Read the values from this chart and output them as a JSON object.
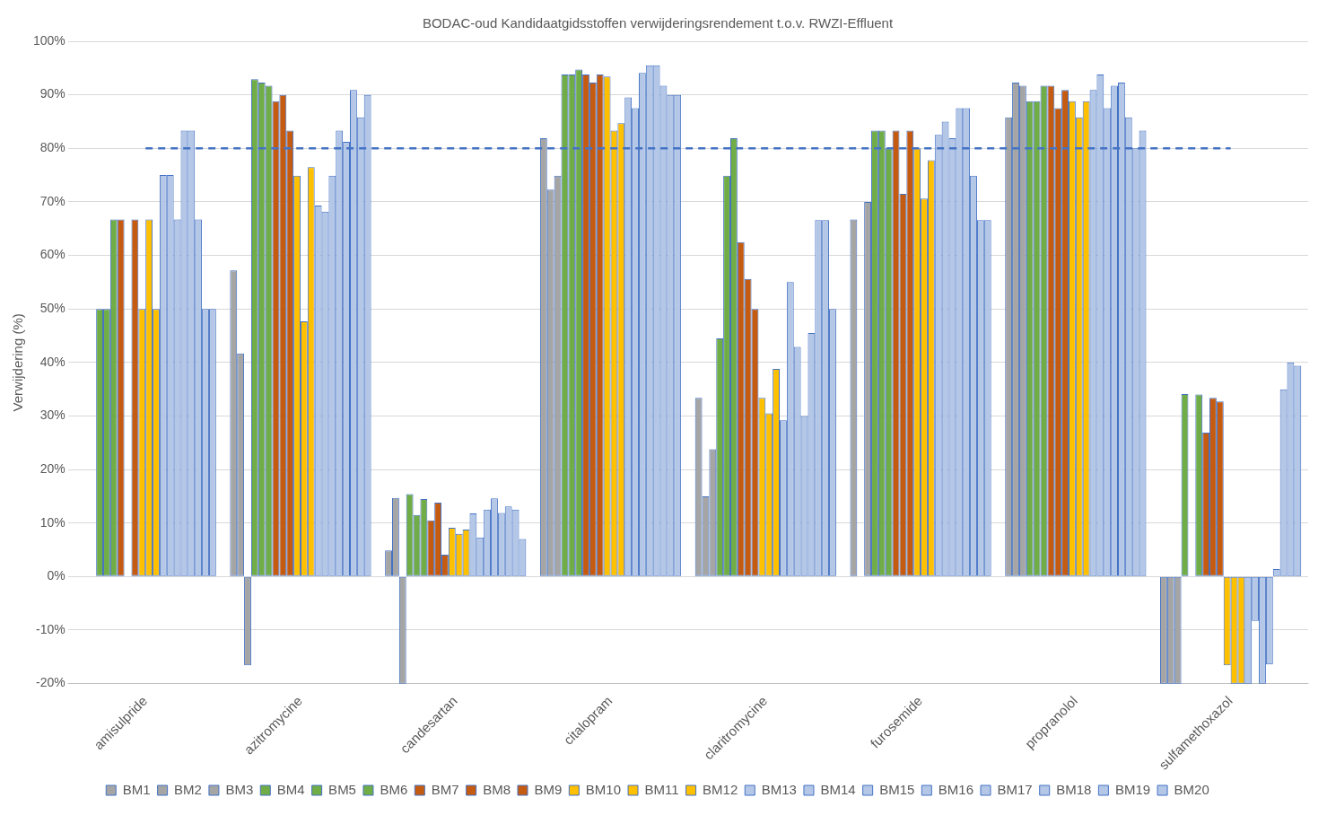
{
  "chart_data": {
    "type": "bar",
    "title": "BODAC-oud Kandidaatgidsstoffen verwijderingsrendement t.o.v. RWZI-Effluent",
    "ylabel": "Verwijdering (%)",
    "categories": [
      "amisulpride",
      "azitromycine",
      "candesartan",
      "citalopram",
      "claritromycine",
      "furosemide",
      "propranolol",
      "sulfamethoxazol"
    ],
    "series": [
      {
        "name": "BM1",
        "color": "#a5a5a5",
        "values": [
          null,
          57.2,
          4.9,
          81.9,
          33.4,
          66.7,
          85.8,
          -20
        ]
      },
      {
        "name": "BM2",
        "color": "#a5a5a5",
        "values": [
          null,
          41.7,
          14.7,
          72.3,
          15.0,
          null,
          92.3,
          -20
        ]
      },
      {
        "name": "BM3",
        "color": "#a5a5a5",
        "values": [
          null,
          -16.6,
          -20,
          74.9,
          23.8,
          70.0,
          91.7,
          -20
        ]
      },
      {
        "name": "BM4",
        "color": "#70ad47",
        "values": [
          50,
          92.9,
          15.4,
          93.8,
          44.5,
          83.3,
          88.8,
          34.1
        ]
      },
      {
        "name": "BM5",
        "color": "#70ad47",
        "values": [
          50,
          92.3,
          11.5,
          93.8,
          74.9,
          83.3,
          88.8,
          null
        ]
      },
      {
        "name": "BM6",
        "color": "#70ad47",
        "values": [
          66.7,
          91.7,
          14.5,
          94.7,
          81.9,
          80.0,
          91.7,
          34.0
        ]
      },
      {
        "name": "BM7",
        "color": "#c55a11",
        "values": [
          66.7,
          88.8,
          10.5,
          93.8,
          62.5,
          83.3,
          91.7,
          26.9
        ]
      },
      {
        "name": "BM8",
        "color": "#c55a11",
        "values": [
          null,
          90.0,
          13.8,
          92.3,
          55.6,
          71.5,
          87.5,
          33.4
        ]
      },
      {
        "name": "BM9",
        "color": "#c55a11",
        "values": [
          66.7,
          83.3,
          4.1,
          93.8,
          50.0,
          83.3,
          90.9,
          32.7
        ]
      },
      {
        "name": "BM10",
        "color": "#ffc000",
        "values": [
          50,
          74.9,
          9.1,
          93.4,
          33.4,
          80.0,
          88.8,
          -16.6
        ]
      },
      {
        "name": "BM11",
        "color": "#ffc000",
        "values": [
          66.7,
          47.7,
          8.0,
          83.3,
          30.5,
          70.6,
          85.8,
          -20
        ]
      },
      {
        "name": "BM12",
        "color": "#ffc000",
        "values": [
          50,
          76.5,
          8.8,
          84.7,
          38.8,
          77.8,
          88.8,
          -20
        ]
      },
      {
        "name": "BM13",
        "color": "#b4c7e7",
        "values": [
          75,
          69.3,
          11.8,
          89.5,
          29.2,
          82.5,
          90.9,
          -20
        ]
      },
      {
        "name": "BM14",
        "color": "#b4c7e7",
        "values": [
          75,
          68.2,
          7.3,
          87.5,
          55.0,
          85.0,
          93.8,
          -8.3
        ]
      },
      {
        "name": "BM15",
        "color": "#b4c7e7",
        "values": [
          66.7,
          74.9,
          12.5,
          94.1,
          42.9,
          81.9,
          87.5,
          -20
        ]
      },
      {
        "name": "BM16",
        "color": "#b4c7e7",
        "values": [
          83.3,
          83.3,
          14.6,
          95.5,
          30.0,
          87.5,
          91.7,
          -16.4
        ]
      },
      {
        "name": "BM17",
        "color": "#b4c7e7",
        "values": [
          83.3,
          81.2,
          11.9,
          95.5,
          45.5,
          87.5,
          92.3,
          1.4
        ]
      },
      {
        "name": "BM18",
        "color": "#b4c7e7",
        "values": [
          66.7,
          90.9,
          13.1,
          91.7,
          66.6,
          74.9,
          85.8,
          35.0
        ]
      },
      {
        "name": "BM19",
        "color": "#b4c7e7",
        "values": [
          50,
          85.8,
          12.5,
          90.0,
          66.6,
          66.6,
          80.0,
          40.0
        ]
      },
      {
        "name": "BM20",
        "color": "#b4c7e7",
        "values": [
          50,
          90.0,
          7.0,
          90.0,
          50.0,
          66.6,
          83.3,
          39.4
        ]
      }
    ],
    "ylim": [
      -20,
      100
    ],
    "yticks": [
      {
        "value": -20,
        "label": "-20%"
      },
      {
        "value": -10,
        "label": "-10%"
      },
      {
        "value": 0,
        "label": "0%"
      },
      {
        "value": 10,
        "label": "10%"
      },
      {
        "value": 20,
        "label": "20%"
      },
      {
        "value": 30,
        "label": "30%"
      },
      {
        "value": 40,
        "label": "40%"
      },
      {
        "value": 50,
        "label": "50%"
      },
      {
        "value": 60,
        "label": "60%"
      },
      {
        "value": 70,
        "label": "70%"
      },
      {
        "value": 80,
        "label": "80%"
      },
      {
        "value": 90,
        "label": "90%"
      },
      {
        "value": 100,
        "label": "100%"
      }
    ],
    "ref_lines": [
      {
        "axis": "y",
        "value": 80,
        "color": "#4472c4",
        "line_style": "dashed"
      }
    ],
    "grid": "y",
    "legend": "bottom"
  }
}
